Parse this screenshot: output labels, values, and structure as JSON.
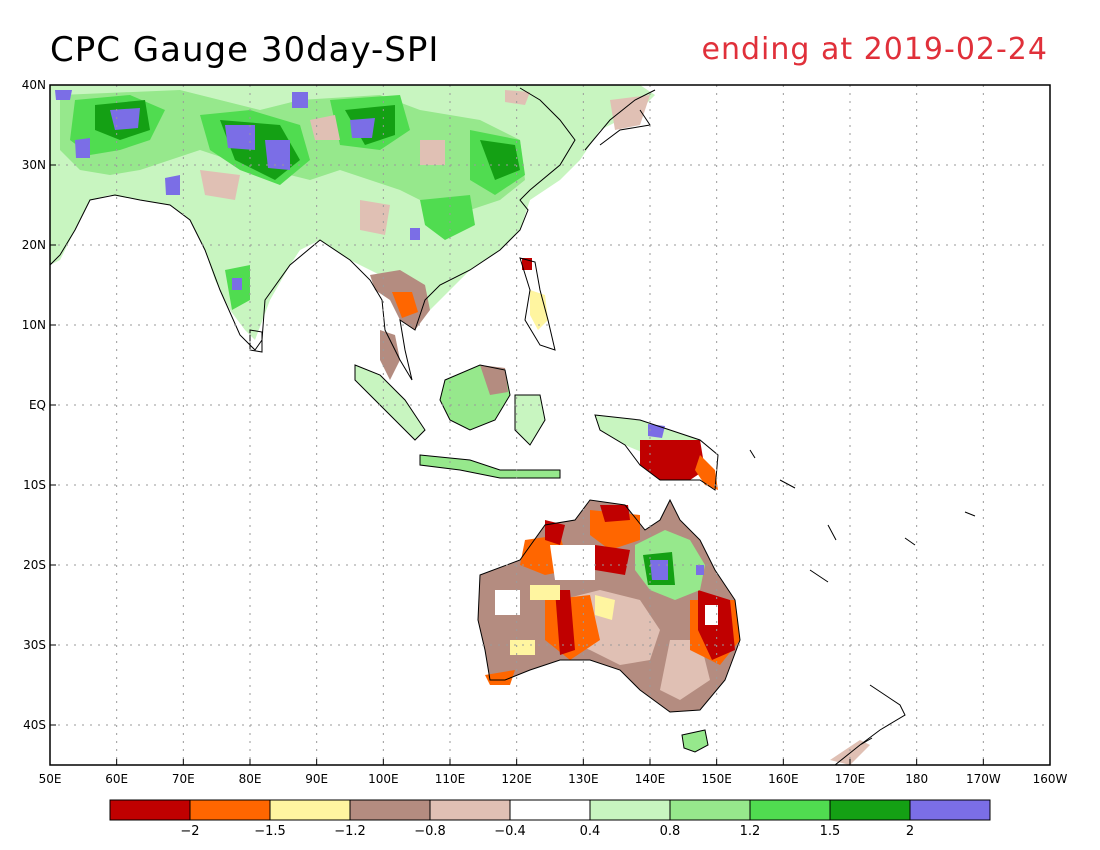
{
  "header": {
    "title": "CPC Gauge 30day-SPI",
    "subtitle": "ending at 2019-02-24"
  },
  "map": {
    "lon_range": [
      50,
      200
    ],
    "lat_range": [
      -45,
      40
    ],
    "lat_labels": [
      "40N",
      "30N",
      "20N",
      "10N",
      "EQ",
      "10S",
      "20S",
      "30S",
      "40S"
    ],
    "lon_labels": [
      "50E",
      "60E",
      "70E",
      "80E",
      "90E",
      "100E",
      "110E",
      "120E",
      "130E",
      "140E",
      "150E",
      "160E",
      "170E",
      "180",
      "170W",
      "160W"
    ],
    "grid": "dotted"
  },
  "colorbar": {
    "colors": [
      "#c00000",
      "#ff6600",
      "#fff5a0",
      "#b48c80",
      "#e0c0b4",
      "#ffffff",
      "#c8f5c0",
      "#96e88c",
      "#50dc50",
      "#14a014",
      "#7b6ee6"
    ],
    "labels": [
      "-2",
      "-1.5",
      "-1.2",
      "-0.8",
      "-0.4",
      "0.4",
      "0.8",
      "1.2",
      "1.5",
      "2"
    ]
  }
}
